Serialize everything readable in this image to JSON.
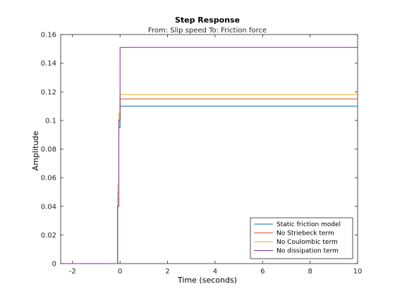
{
  "chart_data": {
    "type": "line",
    "title": "Step Response",
    "subtitle": "From: Slip speed  To: Friction force",
    "xlabel": "Time (seconds)",
    "ylabel": "Amplitude",
    "xlim": [
      -2.5,
      10
    ],
    "ylim": [
      0,
      0.16
    ],
    "xticks": [
      -2,
      0,
      2,
      4,
      6,
      8,
      10
    ],
    "yticks": [
      0,
      0.02,
      0.04,
      0.06,
      0.08,
      0.1,
      0.12,
      0.14,
      0.16
    ],
    "ytick_labels": [
      "0",
      "0.02",
      "0.04",
      "0.06",
      "0.08",
      "0.1",
      "0.12",
      "0.14",
      "0.16"
    ],
    "xtick_labels": [
      "-2",
      "0",
      "2",
      "4",
      "6",
      "8",
      "10"
    ],
    "grid": false,
    "legend_position": "bottom-right",
    "series": [
      {
        "name": "Static friction model",
        "color": "#0072bd",
        "x": [
          -2.5,
          -0.1,
          -0.1,
          -0.05,
          -0.05,
          0,
          0,
          10
        ],
        "y": [
          0,
          0,
          0.045,
          0.045,
          0.095,
          0.095,
          0.11,
          0.11
        ]
      },
      {
        "name": "No Striebeck term",
        "color": "#d95319",
        "x": [
          -2.5,
          -0.1,
          -0.1,
          -0.05,
          -0.05,
          0,
          0,
          10
        ],
        "y": [
          0,
          0,
          0.05,
          0.05,
          0.1,
          0.1,
          0.115,
          0.115
        ]
      },
      {
        "name": "No Coulombic term",
        "color": "#edb120",
        "x": [
          -2.5,
          -0.1,
          -0.1,
          -0.05,
          -0.05,
          0,
          0,
          10
        ],
        "y": [
          0,
          0,
          0.055,
          0.055,
          0.105,
          0.105,
          0.118,
          0.118
        ]
      },
      {
        "name": "No dissipation term",
        "color": "#7e2f8e",
        "x": [
          -2.5,
          -0.1,
          -0.1,
          -0.05,
          -0.05,
          0,
          0,
          10
        ],
        "y": [
          0,
          0,
          0.04,
          0.04,
          0.1,
          0.1,
          0.151,
          0.151
        ]
      }
    ]
  }
}
